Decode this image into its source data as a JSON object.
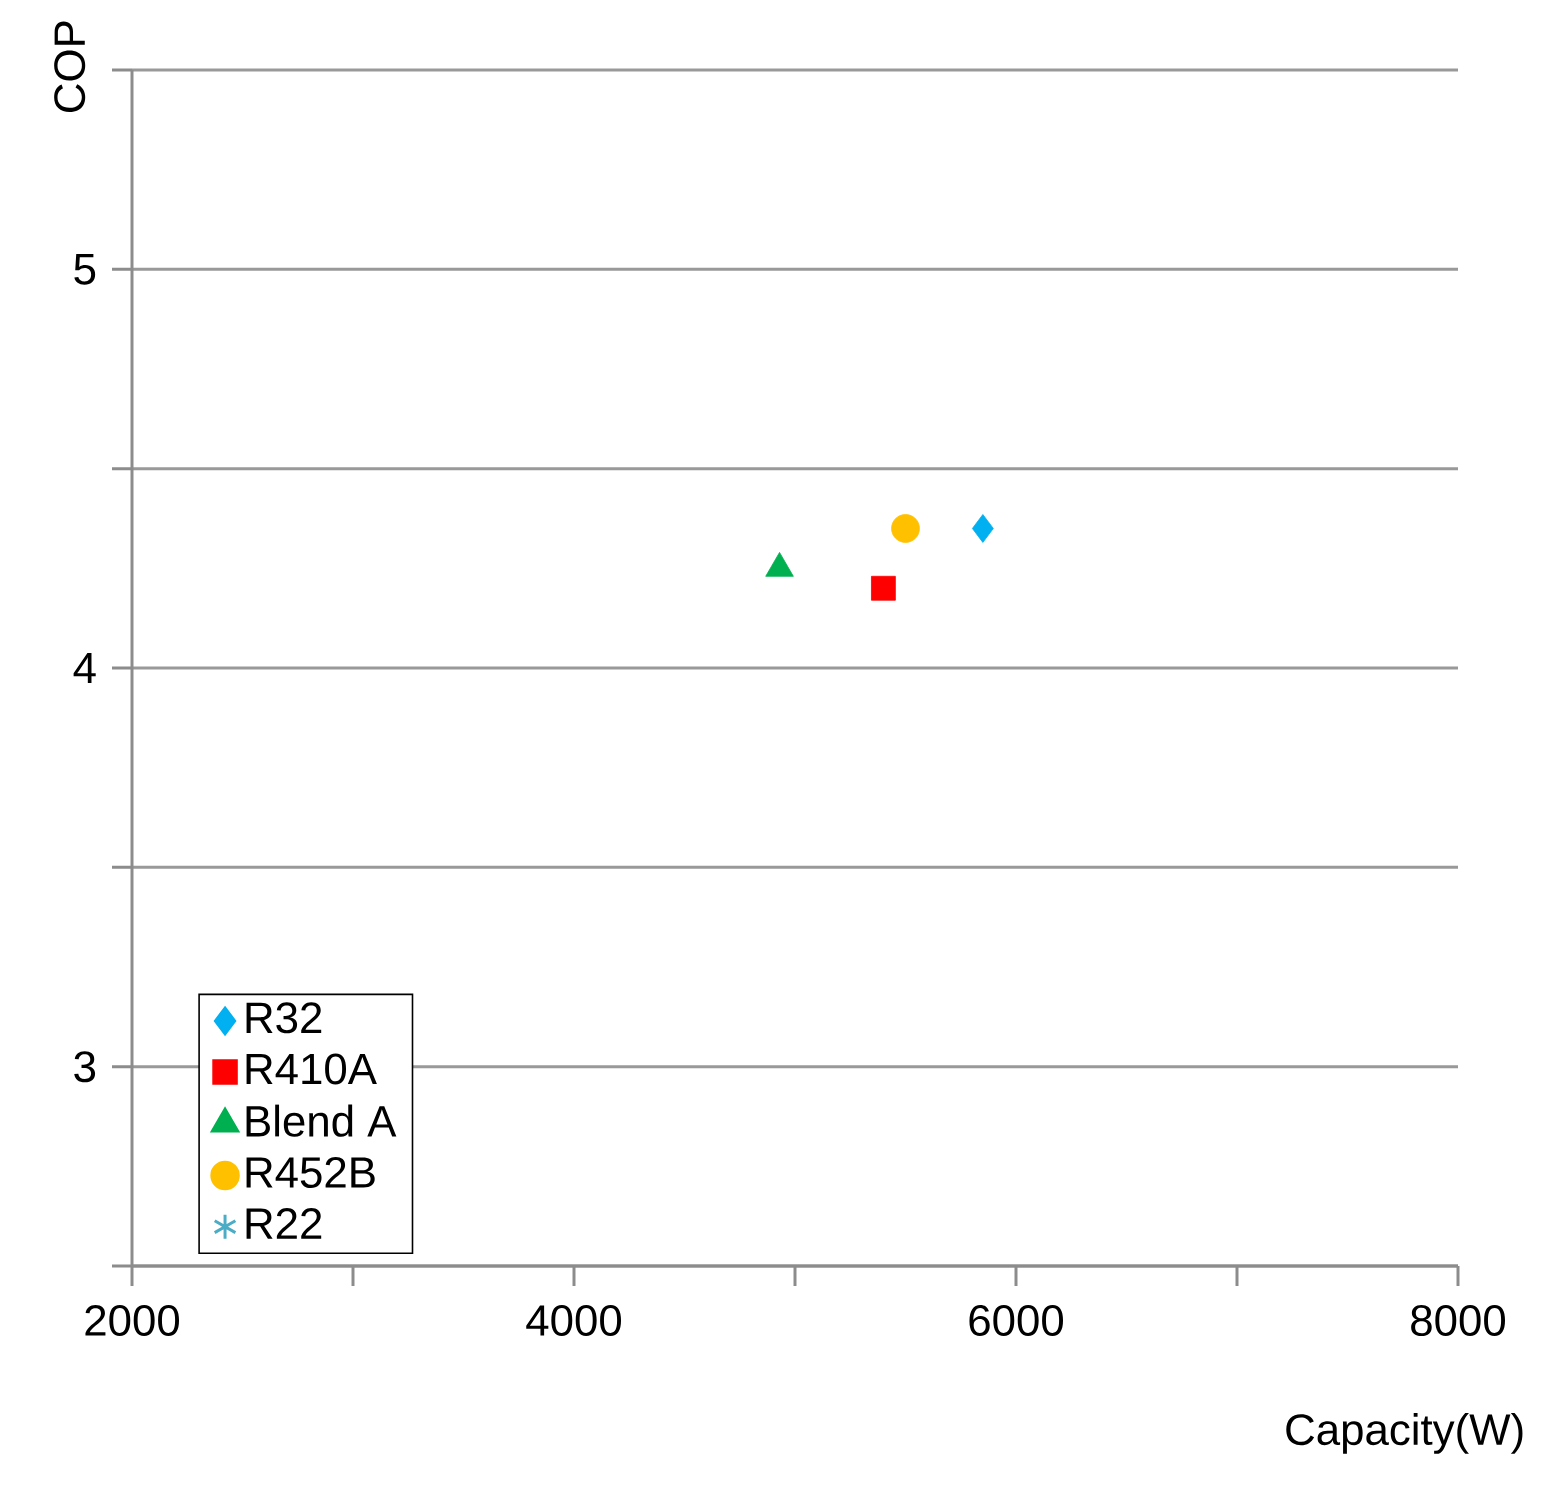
{
  "chart_data": {
    "type": "scatter",
    "xlabel": "Capacity(W)",
    "ylabel": "COP",
    "xlim": [
      2000,
      8000
    ],
    "xticks": [
      2000,
      {
        "value": 3000,
        "label": null
      },
      4000,
      {
        "value": 5000,
        "label": null
      },
      6000,
      {
        "value": 7000,
        "label": null
      },
      8000
    ],
    "ylim": [
      2.5,
      5.5
    ],
    "yticks": [
      {
        "value": 2.5,
        "label": null
      },
      3,
      {
        "value": 3.5,
        "label": null
      },
      4,
      {
        "value": 4.5,
        "label": null
      },
      5,
      {
        "value": 5.5,
        "label": null
      }
    ],
    "grid": "y",
    "legend": "bottom left",
    "series": [
      {
        "name": "R32",
        "color": "#00b0f0",
        "marker": "diamond",
        "x": [
          5850
        ],
        "values": [
          4.35
        ]
      },
      {
        "name": "R410A",
        "color": "#ff0000",
        "marker": "square",
        "x": [
          5400
        ],
        "values": [
          4.2
        ]
      },
      {
        "name": "Blend A",
        "color": "#00b050",
        "marker": "triangle",
        "x": [
          4930
        ],
        "values": [
          4.25
        ]
      },
      {
        "name": "R452B",
        "color": "#ffc000",
        "marker": "circle",
        "x": [
          5500
        ],
        "values": [
          4.35
        ]
      },
      {
        "name": "R22",
        "color": "#4bacc6",
        "marker": "star",
        "x": [
          null
        ],
        "values": [
          null
        ]
      }
    ]
  }
}
